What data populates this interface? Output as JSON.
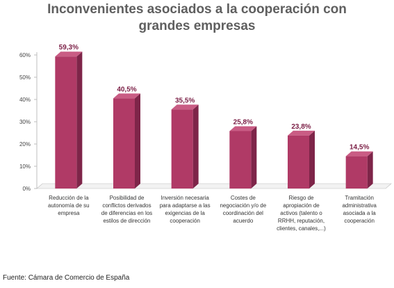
{
  "chart_data": {
    "type": "bar",
    "title": "Inconvenientes asociados a la cooperación con\ngrandes empresas",
    "categories": [
      "Reducción de la autonomía de su empresa",
      "Posibilidad de conflictos derivados de diferencias en los estilos de dirección",
      "Inversión necesaria para adaptarse a las exigencias de la cooperación",
      "Costes de negociación y/o de coordinación del acuerdo",
      "Riesgo de apropiación de activos (talento o RRHH, reputación, clientes, canales,...)",
      "Tramitación administrativa asociada a la cooperación"
    ],
    "values": [
      59.3,
      40.5,
      35.5,
      25.8,
      23.8,
      14.5
    ],
    "data_labels": [
      "59,3%",
      "40,5%",
      "35,5%",
      "25,8%",
      "23,8%",
      "14,5%"
    ],
    "yticks": [
      0,
      10,
      20,
      30,
      40,
      50,
      60
    ],
    "ytick_labels": [
      "0%",
      "10%",
      "20%",
      "30%",
      "40%",
      "50%",
      "60%"
    ],
    "ylim": [
      0,
      60
    ],
    "xlabel": "",
    "ylabel": "",
    "grid": false,
    "bar_style": "3d",
    "colors": {
      "bar_front": "#b03a66",
      "bar_side": "#7e2549",
      "bar_top": "#c95c84",
      "label_text": "#7a1d44",
      "axis": "#bdbdbd",
      "tick_text": "#444444"
    }
  },
  "source": "Fuente: Cámara de Comercio de España"
}
